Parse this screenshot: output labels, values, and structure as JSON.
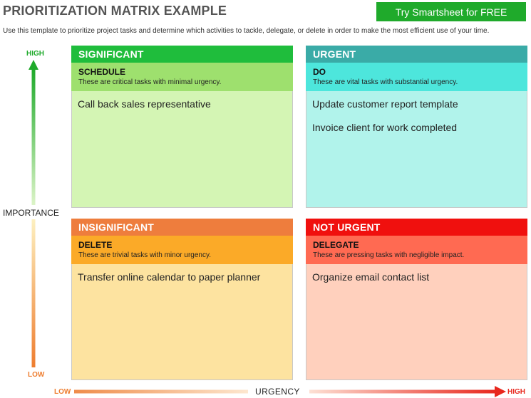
{
  "header": {
    "title": "PRIORITIZATION MATRIX EXAMPLE",
    "cta_label": "Try Smartsheet for FREE",
    "subtitle": "Use this template to prioritize project tasks and determine which activities to tackle, delegate, or delete in order to make the most efficient use of your time."
  },
  "axes": {
    "importance": {
      "title": "IMPORTANCE",
      "high": "HIGH",
      "low": "LOW"
    },
    "urgency": {
      "title": "URGENCY",
      "low": "LOW",
      "high": "HIGH"
    }
  },
  "quadrants": {
    "top_left": {
      "header": "SIGNIFICANT",
      "action": "SCHEDULE",
      "description": "These are critical tasks with minimal urgency.",
      "tasks": [
        "Call back sales representative"
      ]
    },
    "top_right": {
      "header": "URGENT",
      "action": "DO",
      "description": "These are vital tasks with substantial urgency.",
      "tasks": [
        "Update customer report template",
        "Invoice client for work completed"
      ]
    },
    "bottom_left": {
      "header": "INSIGNIFICANT",
      "action": "DELETE",
      "description": "These are trivial tasks with minor urgency.",
      "tasks": [
        "Transfer online calendar to paper planner"
      ]
    },
    "bottom_right": {
      "header": "NOT URGENT",
      "action": "DELEGATE",
      "description": "These are pressing tasks with negligible impact.",
      "tasks": [
        "Organize email contact list"
      ]
    }
  },
  "colors": {
    "cta": "#1faa2b",
    "top_left_header": "#1fbd3c",
    "top_left_sub": "#9ee06e",
    "top_left_body": "#d4f5b4",
    "top_right_header": "#3aaba7",
    "top_right_sub": "#4de6dc",
    "top_right_body": "#b1f3eb",
    "bottom_left_header": "#ee7d3d",
    "bottom_left_sub": "#fbaa28",
    "bottom_left_body": "#fde3a0",
    "bottom_right_header": "#f0100e",
    "bottom_right_sub": "#ff6a52",
    "bottom_right_body": "#ffd0bd",
    "importance_arrow_top": "#1faa2b",
    "importance_arrow_bottom": "#ee7d2f",
    "urgency_arrow_left": "#ef8c4a",
    "urgency_arrow_right": "#e8281e"
  }
}
